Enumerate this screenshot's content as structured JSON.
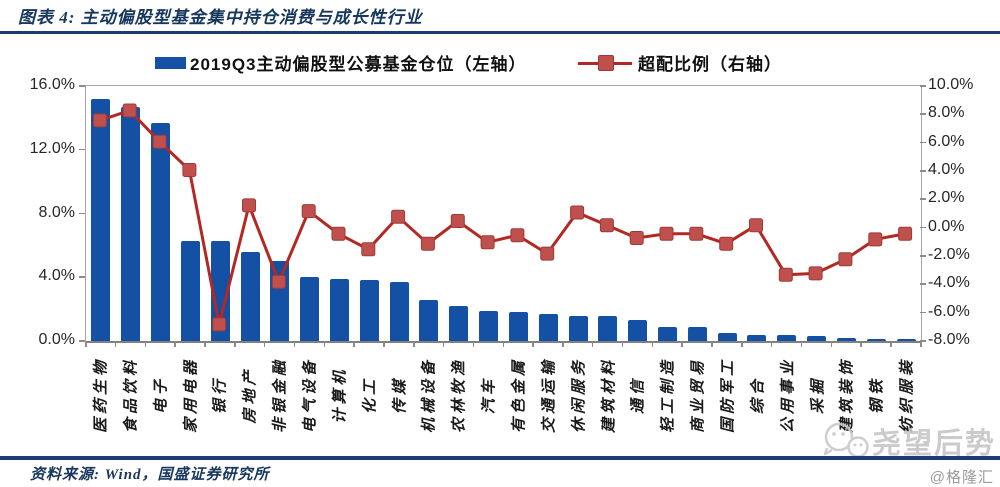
{
  "header": {
    "title": "图表 4: 主动偏股型基金集中持仓消费与成长性行业"
  },
  "legend": {
    "bar_label": "2019Q3主动偏股型公募基金仓位（左轴）",
    "line_label": "超配比例（右轴）"
  },
  "footer": {
    "source": "资料来源: Wind，国盛证券研究所",
    "credit": "@格隆汇"
  },
  "watermark": {
    "text": "尧望后势",
    "icon": "wechat-icon"
  },
  "colors": {
    "bar": "#1450a4",
    "line": "#b22822",
    "marker_fill": "#c0504d",
    "marker_stroke": "#9e3a36",
    "navy": "#17375d",
    "rule": "#1e3a74",
    "axis_text": "#262626",
    "watermark_gray": "#c6c6c6"
  },
  "chart_data": {
    "type": "combo",
    "categories": [
      "医药生物",
      "食品饮料",
      "电子",
      "家用电器",
      "银行",
      "房地产",
      "非银金融",
      "电气设备",
      "计算机",
      "化工",
      "传媒",
      "机械设备",
      "农林牧渔",
      "汽车",
      "有色金属",
      "交通运输",
      "休闲服务",
      "建筑材料",
      "通信",
      "轻工制造",
      "商业贸易",
      "国防军工",
      "综合",
      "公用事业",
      "采掘",
      "建筑装饰",
      "钢铁",
      "纺织服装"
    ],
    "series": [
      {
        "name": "2019Q3主动偏股型公募基金仓位（左轴）",
        "type": "bar",
        "axis": "left",
        "values": [
          15.2,
          14.7,
          13.7,
          6.3,
          6.3,
          5.6,
          5.0,
          4.0,
          3.9,
          3.8,
          3.7,
          2.6,
          2.2,
          1.9,
          1.8,
          1.7,
          1.6,
          1.6,
          1.3,
          0.9,
          0.9,
          0.5,
          0.4,
          0.4,
          0.3,
          0.2,
          0.1,
          0.1
        ]
      },
      {
        "name": "超配比例（右轴）",
        "type": "line",
        "axis": "right",
        "values": [
          7.5,
          8.2,
          6.0,
          4.0,
          -6.9,
          1.5,
          -3.9,
          1.1,
          -0.5,
          -1.6,
          0.7,
          -1.2,
          0.4,
          -1.1,
          -0.6,
          -1.9,
          1.0,
          0.1,
          -0.8,
          -0.5,
          -0.5,
          -1.2,
          0.1,
          -3.4,
          -3.3,
          -2.3,
          -0.9,
          -0.5
        ]
      }
    ],
    "left_axis": {
      "min": 0,
      "max": 16,
      "tick_step": 4,
      "tick_labels_top_to_bottom": [
        "16.0%",
        "12.0%",
        "8.0%",
        "4.0%",
        "0.0%"
      ]
    },
    "right_axis": {
      "min": -8,
      "max": 10,
      "tick_step": 2,
      "tick_labels_top_to_bottom": [
        "10.0%",
        "8.0%",
        "6.0%",
        "4.0%",
        "2.0%",
        "0.0%",
        "-2.0%",
        "-4.0%",
        "-6.0%",
        "-8.0%"
      ]
    },
    "grid": false,
    "legend_position": "top"
  }
}
